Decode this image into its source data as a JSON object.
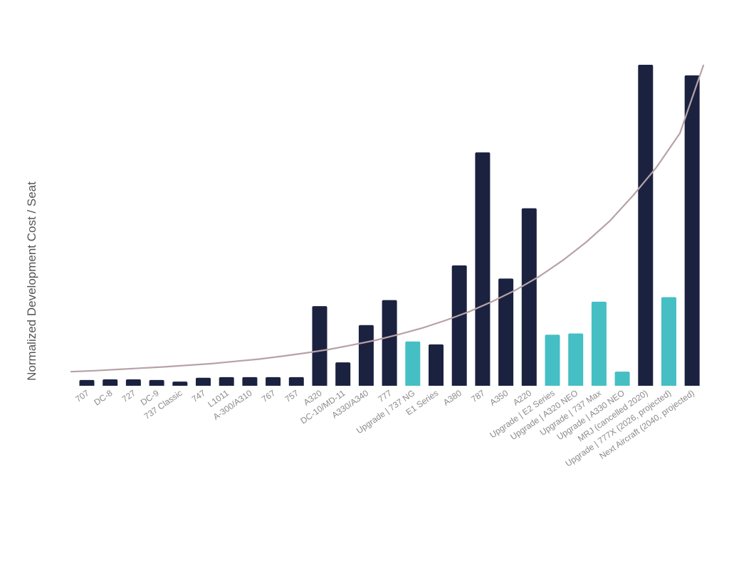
{
  "chart_data": {
    "type": "bar",
    "title": "",
    "xlabel": "",
    "ylabel": "Normalized Development Cost / Seat",
    "ylim": [
      0,
      100
    ],
    "grid": false,
    "categories": [
      "707",
      "DC-8",
      "727",
      "DC-9",
      "737 Classic",
      "747",
      "L1011",
      "A-300/A310",
      "767",
      "757",
      "A320",
      "DC-10/MD-11",
      "A330/A340",
      "777",
      "Upgrade | 737 NG",
      "E1 Series",
      "A380",
      "787",
      "A350",
      "A220",
      "Upgrade | E2 Series",
      "Upgrade | A320 NEO",
      "Upgrade | 737 Max",
      "Upgrade | A330 NEO",
      "MRJ (cancelled 2020)",
      "Upgrade | 777X (2026, projected)",
      "Next Aircraft (2040, projected)"
    ],
    "values": [
      1.8,
      2.0,
      2.0,
      1.8,
      1.3,
      2.5,
      2.7,
      2.7,
      2.7,
      2.7,
      24.8,
      7.3,
      18.9,
      26.7,
      13.8,
      12.9,
      37.5,
      72.7,
      33.4,
      55.3,
      15.9,
      16.3,
      26.2,
      4.4,
      100.0,
      27.6,
      96.7
    ],
    "series_types": [
      "new",
      "new",
      "new",
      "new",
      "new",
      "new",
      "new",
      "new",
      "new",
      "new",
      "new",
      "new",
      "new",
      "new",
      "upgrade",
      "new",
      "new",
      "new",
      "new",
      "new",
      "upgrade",
      "upgrade",
      "upgrade",
      "upgrade",
      "new",
      "upgrade",
      "new"
    ],
    "colors": {
      "new": "#1b2240",
      "upgrade": "#45bfc4",
      "trend": "#b8a2a6"
    },
    "trend": {
      "name": "exponential trend",
      "values": [
        4.4,
        4.7,
        5.1,
        5.5,
        5.9,
        6.4,
        6.9,
        7.6,
        8.3,
        9.2,
        10.2,
        11.3,
        12.7,
        14.2,
        16.0,
        18.0,
        20.4,
        23.1,
        26.3,
        29.9,
        34.1,
        39.1,
        44.8,
        51.3,
        59.3,
        68.1,
        78.7,
        99.8
      ]
    }
  }
}
